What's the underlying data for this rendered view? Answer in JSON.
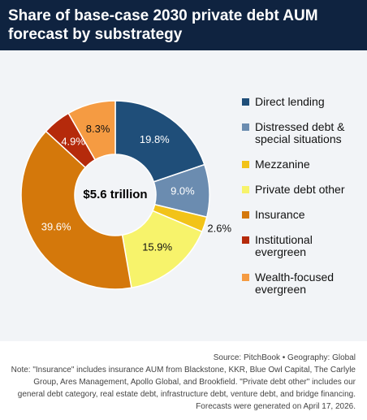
{
  "chart_data": {
    "type": "donut",
    "title": "Share of base-case 2030 private debt AUM forecast by substrategy",
    "center_label": "$5.6 trillion",
    "categories": [
      "Direct lending",
      "Distressed debt & special situations",
      "Mezzanine",
      "Private debt other",
      "Insurance",
      "Institutional evergreen",
      "Wealth-focused evergreen"
    ],
    "values": [
      19.8,
      9.0,
      2.6,
      15.9,
      39.6,
      4.9,
      8.3
    ],
    "value_labels": [
      "19.8%",
      "9.0%",
      "2.6%",
      "15.9%",
      "39.6%",
      "4.9%",
      "8.3%"
    ],
    "colors": [
      "#1f4e79",
      "#6b8cb0",
      "#f2c318",
      "#f7f36b",
      "#d4780b",
      "#b52a0b",
      "#f59b42"
    ],
    "source": "Source: PitchBook • Geography: Global",
    "note": "Note: \"Insurance\" includes insurance AUM from Blackstone, KKR, Blue Owl Capital, The Carlyle Group, Ares Management, Apollo Global, and Brookfield. \"Private debt other\" includes our general debt category, real estate debt, infrastructure debt, venture debt, and bridge financing. Forecasts were generated on April 17, 2026."
  }
}
